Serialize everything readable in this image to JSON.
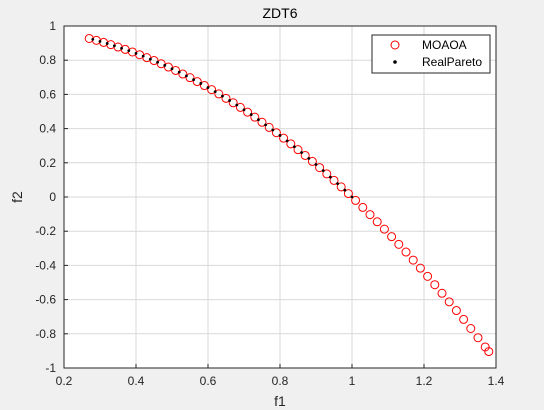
{
  "chart_data": {
    "type": "scatter",
    "title": "ZDT6",
    "xlabel": "f1",
    "ylabel": "f2",
    "xlim": [
      0.2,
      1.4
    ],
    "ylim": [
      -1,
      1
    ],
    "x_ticks": [
      0.2,
      0.4,
      0.6,
      0.8,
      1,
      1.2,
      1.4
    ],
    "x_tick_labels": [
      "0.2",
      "0.4",
      "0.6",
      "0.8",
      "1",
      "1.2",
      "1.4"
    ],
    "y_ticks": [
      -1,
      -0.8,
      -0.6,
      -0.4,
      -0.2,
      0,
      0.2,
      0.4,
      0.6,
      0.8,
      1
    ],
    "y_tick_labels": [
      "-1",
      "-0.8",
      "-0.6",
      "-0.4",
      "-0.2",
      "0",
      "0.2",
      "0.4",
      "0.6",
      "0.8",
      "1"
    ],
    "grid": true,
    "legend_position": "top-right",
    "series": [
      {
        "name": "MOAOA",
        "marker": "open-circle",
        "color": "#ff0000",
        "x": [
          0.27,
          0.29,
          0.31,
          0.33,
          0.35,
          0.37,
          0.39,
          0.41,
          0.43,
          0.45,
          0.47,
          0.49,
          0.51,
          0.53,
          0.55,
          0.57,
          0.59,
          0.61,
          0.63,
          0.65,
          0.67,
          0.69,
          0.71,
          0.73,
          0.75,
          0.77,
          0.79,
          0.81,
          0.83,
          0.85,
          0.87,
          0.89,
          0.91,
          0.93,
          0.95,
          0.97,
          0.99,
          1.01,
          1.03,
          1.05,
          1.07,
          1.09,
          1.11,
          1.13,
          1.15,
          1.17,
          1.19,
          1.21,
          1.23,
          1.25,
          1.27,
          1.29,
          1.31,
          1.33,
          1.35,
          1.37,
          1.38
        ],
        "y": [
          0.927,
          0.916,
          0.904,
          0.891,
          0.877,
          0.863,
          0.848,
          0.832,
          0.815,
          0.798,
          0.779,
          0.76,
          0.74,
          0.719,
          0.698,
          0.675,
          0.652,
          0.628,
          0.603,
          0.577,
          0.551,
          0.524,
          0.496,
          0.467,
          0.437,
          0.407,
          0.376,
          0.344,
          0.311,
          0.277,
          0.243,
          0.208,
          0.172,
          0.135,
          0.097,
          0.059,
          0.02,
          -0.02,
          -0.061,
          -0.103,
          -0.145,
          -0.188,
          -0.232,
          -0.277,
          -0.322,
          -0.369,
          -0.416,
          -0.464,
          -0.513,
          -0.563,
          -0.613,
          -0.664,
          -0.716,
          -0.769,
          -0.823,
          -0.877,
          -0.904
        ]
      },
      {
        "name": "RealPareto",
        "marker": "dot",
        "color": "#000000",
        "x": [
          0.28,
          0.3,
          0.32,
          0.34,
          0.36,
          0.38,
          0.4,
          0.42,
          0.44,
          0.46,
          0.48,
          0.5,
          0.52,
          0.54,
          0.56,
          0.58,
          0.6,
          0.62,
          0.64,
          0.66,
          0.68,
          0.7,
          0.72,
          0.74,
          0.76,
          0.78,
          0.8,
          0.82,
          0.84,
          0.86,
          0.88,
          0.9,
          0.92,
          0.94,
          0.96,
          0.98,
          1.0
        ],
        "y": [
          0.922,
          0.91,
          0.898,
          0.884,
          0.87,
          0.856,
          0.84,
          0.824,
          0.806,
          0.788,
          0.77,
          0.75,
          0.73,
          0.708,
          0.686,
          0.664,
          0.64,
          0.616,
          0.59,
          0.564,
          0.538,
          0.51,
          0.482,
          0.452,
          0.422,
          0.392,
          0.36,
          0.328,
          0.294,
          0.26,
          0.226,
          0.19,
          0.154,
          0.116,
          0.078,
          0.04,
          0.0
        ]
      }
    ]
  }
}
